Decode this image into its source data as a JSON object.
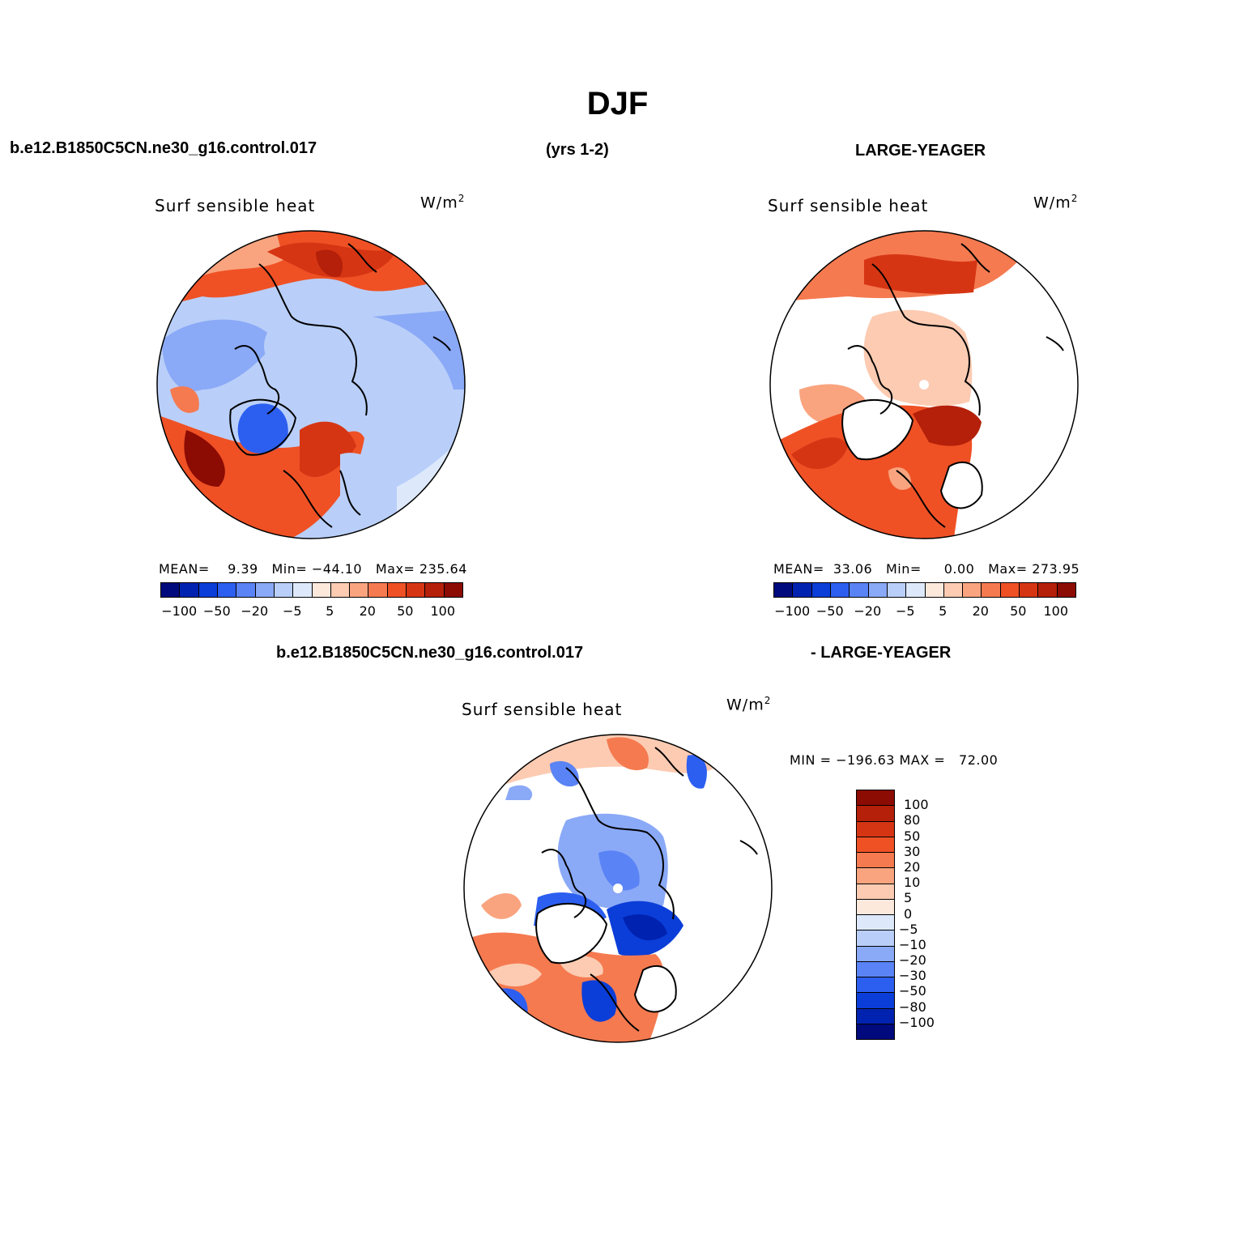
{
  "title": "DJF",
  "top_left": {
    "case": "b.e12.B1850C5CN.ne30_g16.control.017",
    "period": "(yrs 1-2)",
    "panel_title": "Surf sensible heat",
    "units": "W/m",
    "units_sup": "2",
    "mean_label": "MEAN=",
    "mean": "9.39",
    "min_label": "Min=",
    "min": "−44.10",
    "max_label": "Max=",
    "max": "235.64"
  },
  "top_right": {
    "case": "LARGE-YEAGER",
    "panel_title": "Surf sensible heat",
    "units": "W/m",
    "units_sup": "2",
    "mean_label": "MEAN=",
    "mean": "33.06",
    "min_label": "Min=",
    "min": "0.00",
    "max_label": "Max=",
    "max": "273.95"
  },
  "bottom": {
    "case_a": "b.e12.B1850C5CN.ne30_g16.control.017",
    "case_b": "- LARGE-YEAGER",
    "panel_title": "Surf sensible heat",
    "units": "W/m",
    "units_sup": "2",
    "minmax": "MIN = −196.63 MAX =   72.00"
  },
  "horizontal_colorbar": {
    "colors": [
      "#000a7c",
      "#0022b0",
      "#0b3ed8",
      "#2c5ff0",
      "#5a83f5",
      "#8aa9f7",
      "#b9cff9",
      "#dde9fb",
      "#fde8dc",
      "#fccbb2",
      "#f9a47f",
      "#f57a50",
      "#ef5125",
      "#d63514",
      "#b42009",
      "#8c0b03"
    ],
    "tick_labels": [
      "−100",
      "−50",
      "−20",
      "−5",
      "5",
      "20",
      "50",
      "100"
    ]
  },
  "vertical_colorbar": {
    "colors": [
      "#8c0b03",
      "#b42009",
      "#d63514",
      "#ef5125",
      "#f57a50",
      "#f9a47f",
      "#fccbb2",
      "#fde8dc",
      "#dde9fb",
      "#b9cff9",
      "#8aa9f7",
      "#5a83f5",
      "#2c5ff0",
      "#0b3ed8",
      "#0022b0",
      "#000a7c"
    ],
    "labels": [
      "100",
      "80",
      "50",
      "30",
      "20",
      "10",
      "5",
      "0",
      "−5",
      "−10",
      "−20",
      "−30",
      "−50",
      "−80",
      "−100"
    ]
  }
}
